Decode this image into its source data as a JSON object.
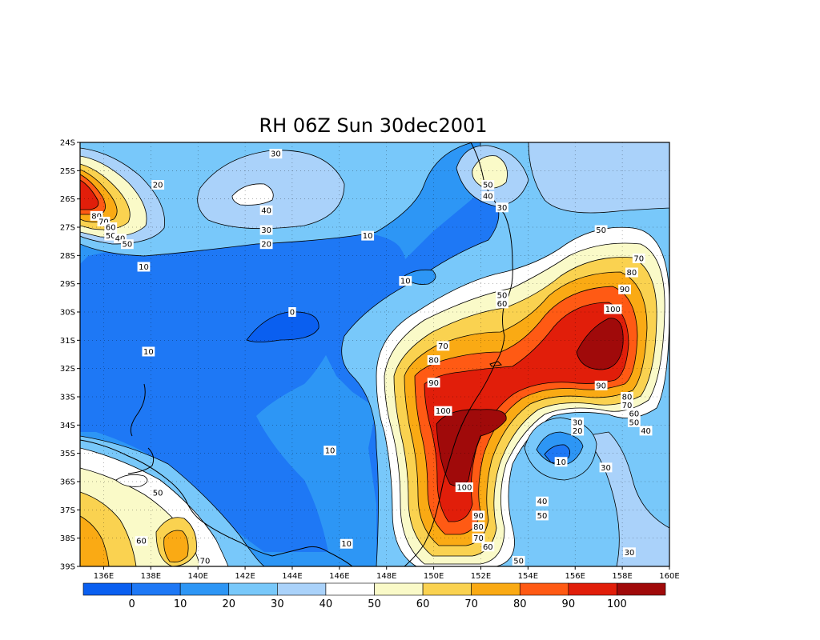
{
  "title": "RH 06Z Sun 30dec2001",
  "map": {
    "lon_range": [
      135,
      160
    ],
    "lat_range": [
      -39,
      -24
    ],
    "grid_dotted": true,
    "lon_ticks": [
      "136E",
      "138E",
      "140E",
      "142E",
      "144E",
      "146E",
      "148E",
      "150E",
      "152E",
      "154E",
      "156E",
      "158E",
      "160E"
    ],
    "lat_ticks": [
      "24S",
      "25S",
      "26S",
      "27S",
      "28S",
      "29S",
      "30S",
      "31S",
      "32S",
      "33S",
      "34S",
      "35S",
      "36S",
      "37S",
      "38S",
      "39S"
    ]
  },
  "colorbar": {
    "colors": [
      "#0a5ff0",
      "#1e78f5",
      "#2d96f5",
      "#78c8fa",
      "#aad2fa",
      "#ffffff",
      "#fafac8",
      "#fad250",
      "#faaa14",
      "#ff5a14",
      "#e11e0a",
      "#a00a0a"
    ],
    "labels": [
      "0",
      "10",
      "20",
      "30",
      "40",
      "50",
      "60",
      "70",
      "80",
      "90",
      "100"
    ]
  },
  "contour_labels": [
    {
      "text": "30",
      "lon": 143.3,
      "lat": -24.4
    },
    {
      "text": "20",
      "lon": 138.3,
      "lat": -25.5
    },
    {
      "text": "40",
      "lon": 142.9,
      "lat": -26.4
    },
    {
      "text": "30",
      "lon": 142.9,
      "lat": -27.1
    },
    {
      "text": "20",
      "lon": 142.9,
      "lat": -27.6
    },
    {
      "text": "10",
      "lon": 147.2,
      "lat": -27.3
    },
    {
      "text": "80",
      "lon": 135.7,
      "lat": -26.6
    },
    {
      "text": "70",
      "lon": 136.0,
      "lat": -26.8
    },
    {
      "text": "60",
      "lon": 136.3,
      "lat": -27.0
    },
    {
      "text": "50",
      "lon": 136.3,
      "lat": -27.3
    },
    {
      "text": "40",
      "lon": 136.7,
      "lat": -27.4
    },
    {
      "text": "50",
      "lon": 137.0,
      "lat": -27.6
    },
    {
      "text": "10",
      "lon": 137.7,
      "lat": -28.4
    },
    {
      "text": "10",
      "lon": 148.8,
      "lat": -28.9
    },
    {
      "text": "0",
      "lon": 144.0,
      "lat": -30.0
    },
    {
      "text": "10",
      "lon": 137.9,
      "lat": -31.4
    },
    {
      "text": "50",
      "lon": 152.9,
      "lat": -29.4
    },
    {
      "text": "60",
      "lon": 152.9,
      "lat": -29.7
    },
    {
      "text": "70",
      "lon": 150.4,
      "lat": -31.2
    },
    {
      "text": "80",
      "lon": 150.0,
      "lat": -31.7
    },
    {
      "text": "90",
      "lon": 150.0,
      "lat": -32.5
    },
    {
      "text": "100",
      "lon": 150.4,
      "lat": -33.5
    },
    {
      "text": "50",
      "lon": 152.3,
      "lat": -25.5
    },
    {
      "text": "40",
      "lon": 152.3,
      "lat": -25.9
    },
    {
      "text": "30",
      "lon": 152.9,
      "lat": -26.3
    },
    {
      "text": "50",
      "lon": 157.1,
      "lat": -27.1
    },
    {
      "text": "70",
      "lon": 158.7,
      "lat": -28.1
    },
    {
      "text": "80",
      "lon": 158.4,
      "lat": -28.6
    },
    {
      "text": "90",
      "lon": 158.1,
      "lat": -29.2
    },
    {
      "text": "100",
      "lon": 157.6,
      "lat": -29.9
    },
    {
      "text": "90",
      "lon": 157.1,
      "lat": -32.6
    },
    {
      "text": "80",
      "lon": 158.2,
      "lat": -33.0
    },
    {
      "text": "70",
      "lon": 158.2,
      "lat": -33.3
    },
    {
      "text": "60",
      "lon": 158.5,
      "lat": -33.6
    },
    {
      "text": "50",
      "lon": 158.5,
      "lat": -33.9
    },
    {
      "text": "30",
      "lon": 156.1,
      "lat": -33.9
    },
    {
      "text": "20",
      "lon": 156.1,
      "lat": -34.2
    },
    {
      "text": "40",
      "lon": 159.0,
      "lat": -34.2
    },
    {
      "text": "10",
      "lon": 145.6,
      "lat": -34.9
    },
    {
      "text": "10",
      "lon": 155.4,
      "lat": -35.3
    },
    {
      "text": "30",
      "lon": 157.3,
      "lat": -35.5
    },
    {
      "text": "100",
      "lon": 151.3,
      "lat": -36.2
    },
    {
      "text": "50",
      "lon": 138.3,
      "lat": -36.4
    },
    {
      "text": "40",
      "lon": 154.6,
      "lat": -36.7
    },
    {
      "text": "50",
      "lon": 154.6,
      "lat": -37.2
    },
    {
      "text": "90",
      "lon": 151.9,
      "lat": -37.2
    },
    {
      "text": "80",
      "lon": 151.9,
      "lat": -37.6
    },
    {
      "text": "70",
      "lon": 151.9,
      "lat": -38.0
    },
    {
      "text": "60",
      "lon": 152.3,
      "lat": -38.3
    },
    {
      "text": "60",
      "lon": 137.6,
      "lat": -38.1
    },
    {
      "text": "70",
      "lon": 140.3,
      "lat": -38.8
    },
    {
      "text": "10",
      "lon": 146.3,
      "lat": -38.2
    },
    {
      "text": "50",
      "lon": 153.6,
      "lat": -38.8
    },
    {
      "text": "30",
      "lon": 158.3,
      "lat": -38.5
    }
  ]
}
